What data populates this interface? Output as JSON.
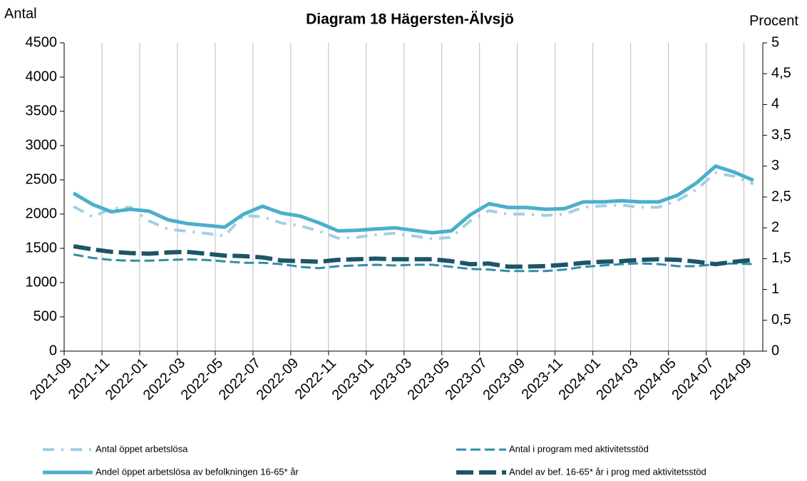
{
  "chart_data": {
    "type": "line",
    "title": "Diagram 18 Hägersten-Älvsjö",
    "y_label": "Antal",
    "y2_label": "Procent",
    "categories": [
      "2021-09",
      null,
      "2021-11",
      null,
      "2022-01",
      null,
      "2022-03",
      null,
      "2022-05",
      null,
      "2022-07",
      null,
      "2022-09",
      null,
      "2022-11",
      null,
      "2023-01",
      null,
      "2023-03",
      null,
      "2023-05",
      null,
      "2023-07",
      null,
      "2023-09",
      null,
      "2023-11",
      null,
      "2024-01",
      null,
      "2024-03",
      null,
      "2024-05",
      null,
      "2024-07",
      null,
      "2024-09"
    ],
    "ylim": [
      0,
      4500
    ],
    "yticks": [
      0,
      500,
      1000,
      1500,
      2000,
      2500,
      3000,
      3500,
      4000,
      4500
    ],
    "y2lim": [
      0,
      5
    ],
    "y2ticks": [
      0,
      {
        "value": 0.5,
        "label": "0,5"
      },
      1,
      {
        "value": 1.5,
        "label": "1,5"
      },
      2,
      {
        "value": 2.5,
        "label": "2,5"
      },
      3,
      {
        "value": 3.5,
        "label": "3,5"
      },
      4,
      {
        "value": 4.5,
        "label": "4,5"
      },
      5
    ],
    "grid": true,
    "series": [
      {
        "name": "Antal öppet arbetslösa",
        "color": "#9fd0e6",
        "dash": "dashdot",
        "width": 4,
        "values": [
          2110,
          1960,
          2080,
          2100,
          1900,
          1780,
          1750,
          1720,
          1680,
          1980,
          1960,
          1870,
          1830,
          1750,
          1650,
          1660,
          1700,
          1720,
          1680,
          1640,
          1660,
          1900,
          2050,
          2000,
          2000,
          1980,
          2000,
          2100,
          2120,
          2130,
          2100,
          2100,
          2200,
          2360,
          2600,
          2550,
          2440
        ]
      },
      {
        "name": "Antal i program med aktivitetsstöd",
        "color": "#2e8fa8",
        "dash": "dashed",
        "width": 3,
        "values": [
          1410,
          1360,
          1330,
          1320,
          1320,
          1330,
          1340,
          1330,
          1310,
          1290,
          1290,
          1270,
          1230,
          1210,
          1240,
          1250,
          1260,
          1250,
          1260,
          1260,
          1230,
          1200,
          1190,
          1170,
          1170,
          1170,
          1190,
          1230,
          1250,
          1270,
          1280,
          1270,
          1240,
          1240,
          1270,
          1280,
          1270
        ]
      },
      {
        "name": "Andel öppet arbetslösa av befolkningen 16-65* år",
        "color": "#4bafcc",
        "dash": "solid",
        "width": 5,
        "axis": "y2",
        "values": [
          2.56,
          2.38,
          2.26,
          2.3,
          2.27,
          2.13,
          2.07,
          2.04,
          2.01,
          2.22,
          2.35,
          2.24,
          2.19,
          2.08,
          1.95,
          1.96,
          1.98,
          2.0,
          1.96,
          1.92,
          1.95,
          2.21,
          2.39,
          2.33,
          2.33,
          2.3,
          2.31,
          2.42,
          2.42,
          2.44,
          2.42,
          2.42,
          2.53,
          2.73,
          3.0,
          2.9,
          2.77
        ]
      },
      {
        "name": "Andel av bef. 16-65* år i prog med aktivitetsstöd",
        "color": "#1d5566",
        "dash": "longdash",
        "width": 6,
        "axis": "y2",
        "values": [
          1.7,
          1.65,
          1.61,
          1.59,
          1.58,
          1.6,
          1.61,
          1.58,
          1.55,
          1.54,
          1.52,
          1.47,
          1.46,
          1.45,
          1.48,
          1.49,
          1.5,
          1.49,
          1.49,
          1.49,
          1.46,
          1.41,
          1.42,
          1.37,
          1.37,
          1.38,
          1.4,
          1.43,
          1.45,
          1.46,
          1.48,
          1.49,
          1.48,
          1.45,
          1.41,
          1.45,
          1.48
        ]
      }
    ]
  }
}
